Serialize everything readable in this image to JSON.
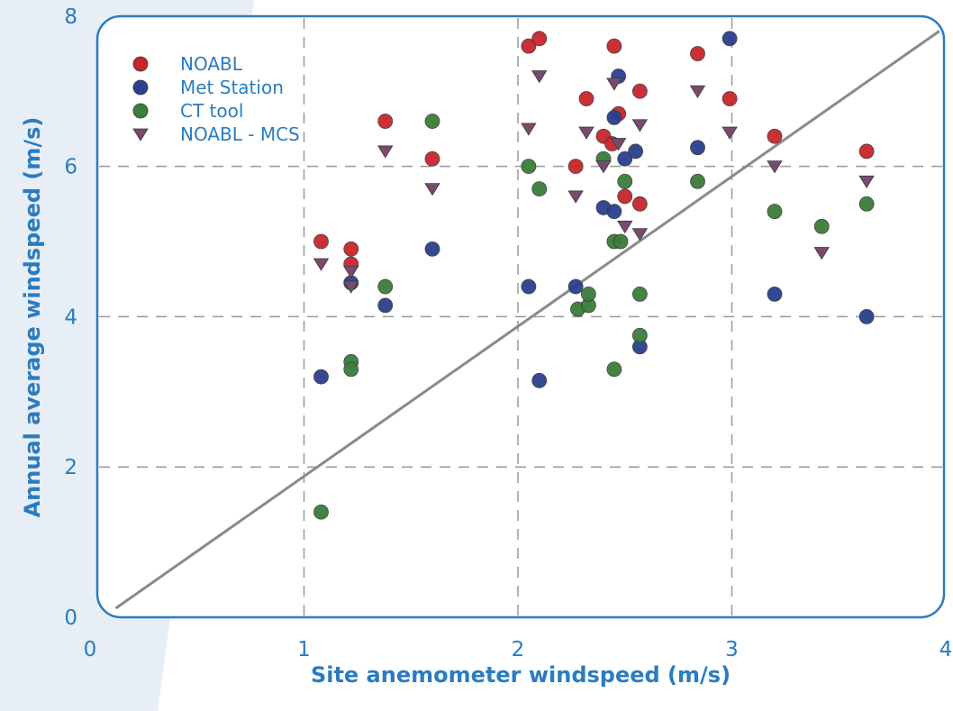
{
  "chart_data": {
    "type": "scatter",
    "xlabel": "Site anemometer windspeed (m/s)",
    "ylabel": "Annual average windspeed (m/s)",
    "xlim": [
      0,
      4
    ],
    "ylim": [
      0,
      8
    ],
    "xticks": [
      "0",
      "1",
      "2",
      "3",
      "4"
    ],
    "yticks": [
      "0",
      "2",
      "4",
      "6",
      "8"
    ],
    "grid": "dashed, at x = 1, 2, 3 and y = 2, 4, 6",
    "reference_line": "y = x",
    "legend_position": "top-left",
    "series": [
      {
        "name": "NOABL",
        "marker": "circle",
        "color": "#c8252b",
        "points": [
          [
            1.08,
            5.0
          ],
          [
            1.22,
            4.9
          ],
          [
            1.22,
            4.7
          ],
          [
            1.38,
            6.6
          ],
          [
            1.6,
            6.1
          ],
          [
            2.05,
            7.6
          ],
          [
            2.1,
            7.7
          ],
          [
            2.27,
            6.0
          ],
          [
            2.32,
            6.9
          ],
          [
            2.4,
            6.4
          ],
          [
            2.44,
            6.3
          ],
          [
            2.45,
            7.6
          ],
          [
            2.47,
            6.7
          ],
          [
            2.5,
            5.6
          ],
          [
            2.57,
            7.0
          ],
          [
            2.57,
            5.5
          ],
          [
            2.84,
            7.5
          ],
          [
            2.99,
            6.9
          ],
          [
            3.2,
            6.4
          ],
          [
            3.63,
            6.2
          ]
        ]
      },
      {
        "name": "Met Station",
        "marker": "circle",
        "color": "#2a3f8f",
        "points": [
          [
            1.08,
            3.2
          ],
          [
            1.22,
            4.45
          ],
          [
            1.38,
            4.15
          ],
          [
            1.6,
            4.9
          ],
          [
            2.05,
            4.4
          ],
          [
            2.1,
            3.15
          ],
          [
            2.27,
            4.4
          ],
          [
            2.4,
            5.45
          ],
          [
            2.45,
            5.4
          ],
          [
            2.45,
            6.65
          ],
          [
            2.47,
            7.2
          ],
          [
            2.5,
            6.1
          ],
          [
            2.55,
            6.2
          ],
          [
            2.57,
            3.6
          ],
          [
            2.84,
            6.25
          ],
          [
            2.99,
            7.7
          ],
          [
            3.2,
            4.3
          ],
          [
            3.63,
            4.0
          ]
        ]
      },
      {
        "name": "CT tool",
        "marker": "circle",
        "color": "#3c7d3c",
        "points": [
          [
            1.08,
            1.4
          ],
          [
            1.22,
            3.4
          ],
          [
            1.22,
            3.3
          ],
          [
            1.38,
            4.4
          ],
          [
            1.6,
            6.6
          ],
          [
            2.05,
            6.0
          ],
          [
            2.1,
            5.7
          ],
          [
            2.28,
            4.1
          ],
          [
            2.33,
            4.15
          ],
          [
            2.33,
            4.3
          ],
          [
            2.4,
            6.1
          ],
          [
            2.45,
            5.0
          ],
          [
            2.45,
            3.3
          ],
          [
            2.48,
            5.0
          ],
          [
            2.5,
            5.8
          ],
          [
            2.57,
            4.3
          ],
          [
            2.57,
            3.75
          ],
          [
            2.84,
            5.8
          ],
          [
            3.2,
            5.4
          ],
          [
            3.42,
            5.2
          ],
          [
            3.63,
            5.5
          ]
        ]
      },
      {
        "name": "NOABL - MCS",
        "marker": "triangle-down",
        "color": "#7a4a6e",
        "points": [
          [
            1.08,
            4.7
          ],
          [
            1.22,
            4.6
          ],
          [
            1.22,
            4.4
          ],
          [
            1.38,
            6.2
          ],
          [
            1.6,
            5.7
          ],
          [
            2.05,
            6.5
          ],
          [
            2.1,
            7.2
          ],
          [
            2.27,
            5.6
          ],
          [
            2.32,
            6.45
          ],
          [
            2.4,
            6.0
          ],
          [
            2.45,
            7.1
          ],
          [
            2.47,
            6.3
          ],
          [
            2.5,
            5.2
          ],
          [
            2.57,
            6.55
          ],
          [
            2.57,
            5.1
          ],
          [
            2.84,
            7.0
          ],
          [
            2.99,
            6.45
          ],
          [
            3.2,
            6.0
          ],
          [
            3.42,
            4.85
          ],
          [
            3.63,
            5.8
          ]
        ]
      }
    ]
  }
}
